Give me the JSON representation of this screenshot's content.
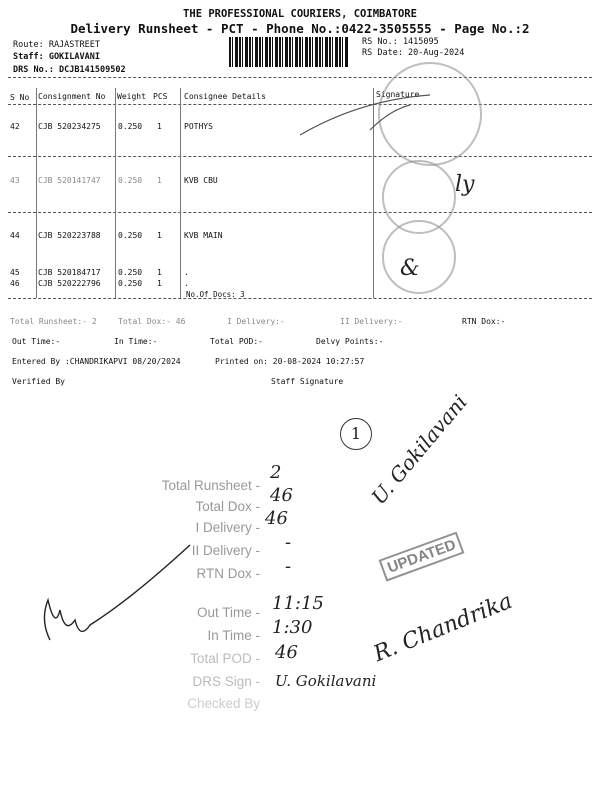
{
  "header": {
    "company": "THE PROFESSIONAL COURIERS, COIMBATORE",
    "subtitle": "Delivery Runsheet - PCT - Phone No.:0422-3505555 - Page No.:2",
    "route": "Route: RAJASTREET",
    "staff": "Staff: GOKILAVANI",
    "drs": "DRS No.: DCJB141509502",
    "rs_no": "RS No.: 1415095",
    "rs_date": "RS Date: 20-Aug-2024"
  },
  "table": {
    "columns": [
      "S No",
      "Consignment No",
      "Weight",
      "PCS",
      "Consignee Details",
      "Signature"
    ],
    "rows": [
      {
        "sno": "42",
        "cons": "CJB 520234275",
        "weight": "0.250",
        "pcs": "1",
        "details": "POTHYS"
      },
      {
        "sno": "43",
        "cons": "CJB 520141747",
        "weight": "0.250",
        "pcs": "1",
        "details": "KVB  CBU"
      },
      {
        "sno": "44",
        "cons": "CJB 520223788",
        "weight": "0.250",
        "pcs": "1",
        "details": "KVB  MAIN"
      },
      {
        "sno": "45",
        "cons": "CJB 520184717",
        "weight": "0.250",
        "pcs": "1",
        "details": "."
      },
      {
        "sno": "46",
        "cons": "CJB 520222796",
        "weight": "0.250",
        "pcs": "1",
        "details": "."
      }
    ],
    "docs_count": "No.Of Docs: 3"
  },
  "summary": {
    "total_runsheet": "Total Runsheet:- 2",
    "total_dox": "Total Dox:- 46",
    "i_delivery": "I Delivery:-",
    "ii_delivery": "II Delivery:-",
    "rtn_dox": "RTN Dox:-",
    "out_time": "Out Time:-",
    "in_time": "In Time:-",
    "total_pod": "Total POD:-",
    "delvy_points": "Delvy Points:-",
    "entered_by": "Entered By :CHANDRIKAPVI 08/20/2024",
    "printed_on": "Printed on: 20-08-2024 10:27:57",
    "verified_by": "Verified By",
    "staff_signature": "Staff Signature"
  },
  "stamp_block": {
    "labels": [
      "Total Runsheet -",
      "Total Dox -",
      "I Delivery -",
      "II Delivery -",
      "RTN Dox -",
      "Out Time -",
      "In Time -",
      "Total POD -",
      "DRS Sign -",
      "Checked By"
    ],
    "values": [
      "2",
      "46",
      "46",
      "-",
      "-",
      "11:15",
      "1:30",
      "46",
      "U. Gokilavani",
      ""
    ],
    "updated_stamp": "UPDATED",
    "circled": "1",
    "sig_top": "U. Gokilavani",
    "sig_right": "R. Chandrika"
  }
}
